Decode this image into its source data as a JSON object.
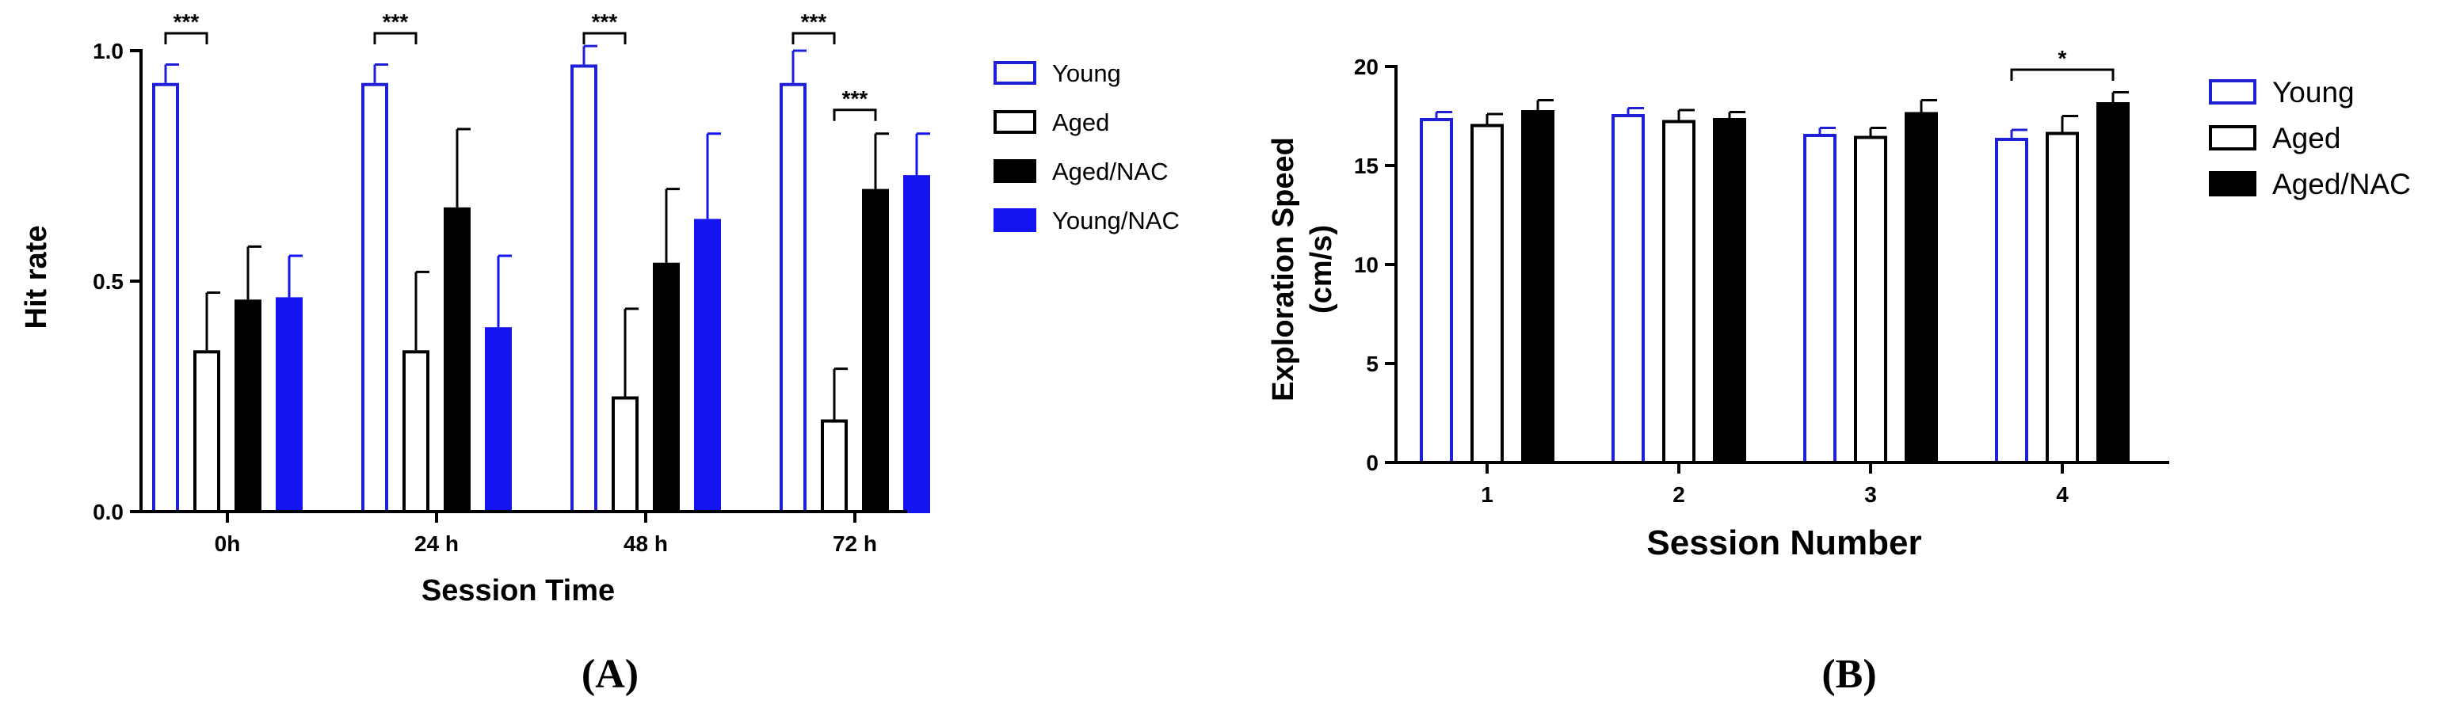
{
  "colors": {
    "young": "#1f1fd6",
    "young_nac": "#1414f0",
    "black": "#000000",
    "white": "#ffffff"
  },
  "panels": {
    "a_label": "(A)",
    "b_label": "(B)"
  },
  "chart_data": [
    {
      "type": "bar",
      "id": "A",
      "title": "",
      "xlabel": "Session Time",
      "ylabel": "Hit rate",
      "categories": [
        "0h",
        "24 h",
        "48 h",
        "72 h"
      ],
      "ylim": [
        0,
        1.0
      ],
      "yticks": [
        0.0,
        0.5,
        1.0
      ],
      "ytick_labels": [
        "0.0",
        "0.5",
        "1.0"
      ],
      "legend_position": "right",
      "series": [
        {
          "name": "Young",
          "style": "outline-blue",
          "values": [
            0.93,
            0.93,
            0.97,
            0.93
          ],
          "errors": [
            0.04,
            0.04,
            0.04,
            0.07
          ]
        },
        {
          "name": "Aged",
          "style": "outline-black",
          "values": [
            0.35,
            0.35,
            0.25,
            0.2
          ],
          "errors": [
            0.125,
            0.17,
            0.19,
            0.11
          ]
        },
        {
          "name": "Aged/NAC",
          "style": "filled-black",
          "values": [
            0.46,
            0.66,
            0.54,
            0.7
          ],
          "errors": [
            0.115,
            0.17,
            0.16,
            0.12
          ]
        },
        {
          "name": "Young/NAC",
          "style": "filled-blue",
          "values": [
            0.465,
            0.4,
            0.635,
            0.73
          ],
          "errors": [
            0.09,
            0.155,
            0.185,
            0.09
          ]
        }
      ],
      "significance": [
        {
          "category": 0,
          "from_series": 0,
          "to_series": 1,
          "label": "***"
        },
        {
          "category": 1,
          "from_series": 0,
          "to_series": 1,
          "label": "***"
        },
        {
          "category": 2,
          "from_series": 0,
          "to_series": 1,
          "label": "***"
        },
        {
          "category": 3,
          "from_series": 0,
          "to_series": 1,
          "label": "***"
        },
        {
          "category": 3,
          "from_series": 1,
          "to_series": 2,
          "label": "***"
        }
      ]
    },
    {
      "type": "bar",
      "id": "B",
      "title": "",
      "xlabel": "Session Number",
      "ylabel": "Exploration Speed (cm/s)",
      "ylabel_lines": [
        "Exploration Speed",
        "(cm/s)"
      ],
      "categories": [
        "1",
        "2",
        "3",
        "4"
      ],
      "ylim": [
        0,
        20
      ],
      "yticks": [
        0,
        5,
        10,
        15,
        20
      ],
      "ytick_labels": [
        "0",
        "5",
        "10",
        "15",
        "20"
      ],
      "legend_position": "right",
      "series": [
        {
          "name": "Young",
          "style": "outline-blue",
          "values": [
            17.4,
            17.6,
            16.6,
            16.4
          ],
          "errors": [
            0.3,
            0.3,
            0.3,
            0.4
          ]
        },
        {
          "name": "Aged",
          "style": "outline-black",
          "values": [
            17.1,
            17.3,
            16.5,
            16.7
          ],
          "errors": [
            0.5,
            0.5,
            0.4,
            0.8
          ]
        },
        {
          "name": "Aged/NAC",
          "style": "filled-black",
          "values": [
            17.8,
            17.4,
            17.7,
            18.2
          ],
          "errors": [
            0.5,
            0.3,
            0.6,
            0.5
          ]
        }
      ],
      "significance": [
        {
          "category": 3,
          "from_series": 0,
          "to_series": 2,
          "label": "*"
        }
      ]
    }
  ]
}
